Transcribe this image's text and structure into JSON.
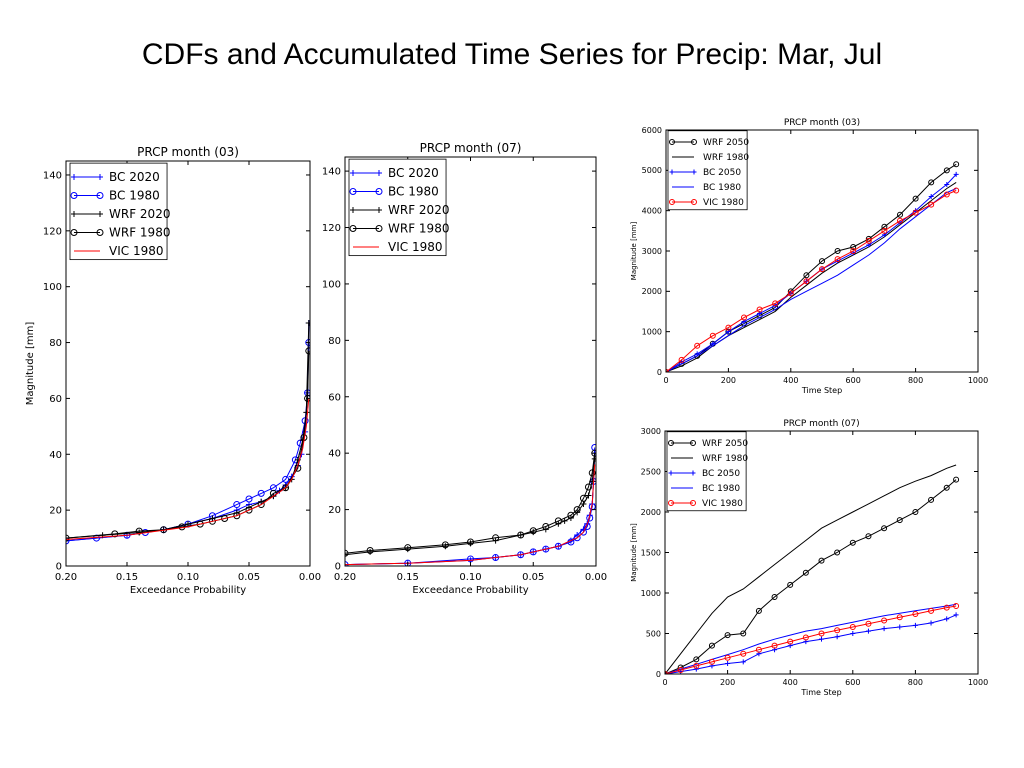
{
  "slide": {
    "title": "CDFs and Accumulated Time Series for Precip:  Mar, Jul"
  },
  "colors": {
    "bc_future": "#0000ff",
    "bc_1980": "#0000ff",
    "wrf": "#000000",
    "vic": "#ff0000"
  },
  "chart_data": [
    {
      "id": "cdf_mar",
      "type": "line",
      "title": "PRCP month (03)",
      "xlabel": "Exceedance Probability",
      "ylabel": "Magnitude [mm]",
      "xlim": [
        0.2,
        0.0
      ],
      "ylim": [
        0,
        145
      ],
      "xticks": [
        0.2,
        0.15,
        0.1,
        0.05,
        0.0
      ],
      "xticklabels": [
        "0.20",
        "0.15",
        "0.10",
        "0.05",
        "0.00"
      ],
      "yticks": [
        0,
        20,
        40,
        60,
        80,
        100,
        120,
        140
      ],
      "grid": false,
      "legend": "top-left",
      "series": [
        {
          "name": "BC 2020",
          "color": "#0000ff",
          "marker": "plus",
          "x": [
            0.2,
            0.15,
            0.12,
            0.1,
            0.08,
            0.06,
            0.05,
            0.04,
            0.03,
            0.025,
            0.02,
            0.015,
            0.01,
            0.007,
            0.004,
            0.002,
            0.001
          ],
          "y": [
            9,
            11,
            13,
            15,
            17,
            20,
            22,
            23,
            25,
            27,
            29,
            32,
            36,
            40,
            48,
            62,
            87
          ]
        },
        {
          "name": "BC 1980",
          "color": "#0000ff",
          "marker": "circle",
          "x": [
            0.2,
            0.175,
            0.15,
            0.135,
            0.12,
            0.1,
            0.08,
            0.06,
            0.05,
            0.04,
            0.03,
            0.02,
            0.012,
            0.008,
            0.004,
            0.002,
            0.001
          ],
          "y": [
            9,
            10,
            11,
            12,
            13,
            15,
            18,
            22,
            24,
            26,
            28,
            31,
            38,
            44,
            52,
            62,
            80
          ]
        },
        {
          "name": "WRF 2020",
          "color": "#000000",
          "marker": "plus",
          "x": [
            0.2,
            0.17,
            0.14,
            0.12,
            0.1,
            0.08,
            0.06,
            0.05,
            0.04,
            0.03,
            0.02,
            0.015,
            0.01,
            0.006,
            0.003,
            0.001
          ],
          "y": [
            10,
            11,
            12,
            13,
            15,
            17,
            19,
            21,
            23,
            25,
            28,
            31,
            38,
            45,
            55,
            87
          ]
        },
        {
          "name": "WRF 1980",
          "color": "#000000",
          "marker": "circle",
          "x": [
            0.2,
            0.16,
            0.14,
            0.12,
            0.105,
            0.09,
            0.08,
            0.07,
            0.06,
            0.05,
            0.04,
            0.03,
            0.02,
            0.01,
            0.005,
            0.002,
            0.001
          ],
          "y": [
            10,
            11.5,
            12.5,
            13,
            14,
            15,
            16,
            17,
            18,
            20,
            22,
            26,
            28,
            35,
            46,
            60,
            77
          ]
        },
        {
          "name": "VIC 1980",
          "color": "#ff0000",
          "marker": "none",
          "x": [
            0.2,
            0.15,
            0.1,
            0.08,
            0.06,
            0.04,
            0.03,
            0.02,
            0.015,
            0.01,
            0.006,
            0.003,
            0.001
          ],
          "y": [
            9.5,
            11,
            14,
            16,
            18,
            22,
            25,
            28,
            31,
            36,
            42,
            50,
            60
          ]
        }
      ]
    },
    {
      "id": "cdf_jul",
      "type": "line",
      "title": "PRCP month (07)",
      "xlabel": "Exceedance Probability",
      "ylabel": "",
      "xlim": [
        0.2,
        0.0
      ],
      "ylim": [
        0,
        145
      ],
      "xticks": [
        0.2,
        0.15,
        0.1,
        0.05,
        0.0
      ],
      "xticklabels": [
        "0.20",
        "0.15",
        "0.10",
        "0.05",
        "0.00"
      ],
      "yticks": [
        0,
        20,
        40,
        60,
        80,
        100,
        120,
        140
      ],
      "grid": false,
      "legend": "top-left",
      "series": [
        {
          "name": "BC 2020",
          "color": "#0000ff",
          "marker": "plus",
          "x": [
            0.2,
            0.15,
            0.1,
            0.08,
            0.06,
            0.05,
            0.04,
            0.03,
            0.02,
            0.015,
            0.01,
            0.007,
            0.005,
            0.003,
            0.002,
            0.001
          ],
          "y": [
            0.5,
            1,
            2,
            3,
            4,
            5,
            6,
            7,
            9,
            11,
            13,
            15,
            18,
            22,
            30,
            40
          ]
        },
        {
          "name": "BC 1980",
          "color": "#0000ff",
          "marker": "circle",
          "x": [
            0.2,
            0.15,
            0.1,
            0.08,
            0.06,
            0.05,
            0.04,
            0.03,
            0.02,
            0.015,
            0.01,
            0.007,
            0.005,
            0.003,
            0.002,
            0.001
          ],
          "y": [
            0.5,
            1,
            2.5,
            3,
            4,
            5,
            6,
            7,
            8.5,
            10,
            12,
            14,
            17,
            21,
            30,
            42
          ]
        },
        {
          "name": "WRF 2020",
          "color": "#000000",
          "marker": "plus",
          "x": [
            0.2,
            0.18,
            0.15,
            0.12,
            0.1,
            0.08,
            0.06,
            0.05,
            0.04,
            0.03,
            0.025,
            0.02,
            0.015,
            0.01,
            0.006,
            0.003,
            0.001
          ],
          "y": [
            4,
            5,
            6,
            7,
            8,
            9,
            11,
            12,
            13,
            15,
            16,
            17,
            19,
            22,
            25,
            30,
            38
          ]
        },
        {
          "name": "WRF 1980",
          "color": "#000000",
          "marker": "circle",
          "x": [
            0.2,
            0.18,
            0.15,
            0.12,
            0.1,
            0.08,
            0.06,
            0.05,
            0.04,
            0.03,
            0.02,
            0.015,
            0.01,
            0.006,
            0.003,
            0.001
          ],
          "y": [
            4.5,
            5.5,
            6.5,
            7.5,
            8.5,
            10,
            11,
            12.5,
            14,
            16,
            18,
            20,
            24,
            28,
            33,
            40
          ]
        },
        {
          "name": "VIC 1980",
          "color": "#ff0000",
          "marker": "none",
          "x": [
            0.2,
            0.15,
            0.1,
            0.08,
            0.06,
            0.04,
            0.03,
            0.02,
            0.015,
            0.01,
            0.006,
            0.003,
            0.001
          ],
          "y": [
            0.5,
            1,
            2,
            3,
            4,
            6,
            7,
            9,
            10,
            12,
            16,
            22,
            36
          ]
        }
      ]
    },
    {
      "id": "ts_mar",
      "type": "line",
      "title": "PRCP month (03)",
      "xlabel": "Time Step",
      "ylabel": "Magnitude [mm]",
      "xlim": [
        0,
        1000
      ],
      "ylim": [
        0,
        6000
      ],
      "xticks": [
        0,
        200,
        400,
        600,
        800,
        1000
      ],
      "xticklabels": [
        "0",
        "200",
        "400",
        "600",
        "800",
        "1000"
      ],
      "yticks": [
        0,
        1000,
        2000,
        3000,
        4000,
        5000,
        6000
      ],
      "grid": false,
      "legend": "top-left",
      "series": [
        {
          "name": "WRF 2050",
          "color": "#000000",
          "marker": "circle",
          "x": [
            0,
            50,
            100,
            150,
            200,
            250,
            300,
            350,
            400,
            450,
            500,
            550,
            600,
            650,
            700,
            750,
            800,
            850,
            900,
            930
          ],
          "y": [
            0,
            200,
            400,
            700,
            1000,
            1200,
            1400,
            1600,
            2000,
            2400,
            2750,
            3000,
            3100,
            3300,
            3600,
            3900,
            4300,
            4700,
            5000,
            5150
          ]
        },
        {
          "name": "WRF 1980",
          "color": "#000000",
          "marker": "none",
          "x": [
            0,
            50,
            100,
            150,
            200,
            250,
            300,
            350,
            400,
            450,
            500,
            550,
            600,
            650,
            700,
            750,
            800,
            850,
            900,
            930
          ],
          "y": [
            0,
            150,
            350,
            650,
            900,
            1100,
            1300,
            1500,
            1850,
            2150,
            2450,
            2700,
            2900,
            3100,
            3350,
            3650,
            3950,
            4250,
            4550,
            4700
          ]
        },
        {
          "name": "BC 2050",
          "color": "#0000ff",
          "marker": "plus",
          "x": [
            0,
            50,
            100,
            150,
            200,
            250,
            300,
            350,
            400,
            450,
            500,
            550,
            600,
            650,
            700,
            750,
            800,
            850,
            900,
            930
          ],
          "y": [
            0,
            250,
            450,
            700,
            1000,
            1250,
            1450,
            1650,
            1950,
            2250,
            2550,
            2750,
            2950,
            3150,
            3400,
            3700,
            4000,
            4350,
            4650,
            4900
          ]
        },
        {
          "name": "BC 1980",
          "color": "#0000ff",
          "marker": "none",
          "x": [
            0,
            50,
            100,
            150,
            200,
            250,
            300,
            350,
            400,
            450,
            500,
            550,
            600,
            650,
            700,
            750,
            800,
            850,
            900,
            930
          ],
          "y": [
            0,
            200,
            400,
            650,
            900,
            1150,
            1350,
            1550,
            1800,
            2000,
            2200,
            2400,
            2650,
            2900,
            3200,
            3550,
            3850,
            4150,
            4450,
            4550
          ]
        },
        {
          "name": "VIC 1980",
          "color": "#ff0000",
          "marker": "circle",
          "x": [
            0,
            50,
            100,
            150,
            200,
            250,
            300,
            350,
            400,
            450,
            500,
            550,
            600,
            650,
            700,
            750,
            800,
            850,
            900,
            930
          ],
          "y": [
            0,
            300,
            650,
            900,
            1100,
            1350,
            1550,
            1700,
            1950,
            2250,
            2550,
            2800,
            3000,
            3250,
            3500,
            3750,
            3950,
            4150,
            4400,
            4500
          ]
        }
      ]
    },
    {
      "id": "ts_jul",
      "type": "line",
      "title": "PRCP month (07)",
      "xlabel": "Time Step",
      "ylabel": "Magnitude [mm]",
      "xlim": [
        0,
        1000
      ],
      "ylim": [
        0,
        3000
      ],
      "xticks": [
        0,
        200,
        400,
        600,
        800,
        1000
      ],
      "xticklabels": [
        "0",
        "200",
        "400",
        "600",
        "800",
        "1000"
      ],
      "yticks": [
        0,
        500,
        1000,
        1500,
        2000,
        2500,
        3000
      ],
      "grid": false,
      "legend": "top-left",
      "series": [
        {
          "name": "WRF 2050",
          "color": "#000000",
          "marker": "circle",
          "x": [
            0,
            50,
            100,
            150,
            200,
            250,
            300,
            350,
            400,
            450,
            500,
            550,
            600,
            650,
            700,
            750,
            800,
            850,
            900,
            930
          ],
          "y": [
            0,
            80,
            180,
            350,
            480,
            500,
            780,
            950,
            1100,
            1250,
            1400,
            1500,
            1620,
            1700,
            1800,
            1900,
            2000,
            2150,
            2300,
            2400
          ]
        },
        {
          "name": "WRF 1980",
          "color": "#000000",
          "marker": "none",
          "x": [
            0,
            50,
            100,
            150,
            200,
            250,
            300,
            350,
            400,
            450,
            500,
            550,
            600,
            650,
            700,
            750,
            800,
            850,
            900,
            930
          ],
          "y": [
            0,
            250,
            500,
            750,
            950,
            1050,
            1200,
            1350,
            1500,
            1650,
            1800,
            1900,
            2000,
            2100,
            2200,
            2300,
            2380,
            2450,
            2540,
            2580
          ]
        },
        {
          "name": "BC 2050",
          "color": "#0000ff",
          "marker": "plus",
          "x": [
            0,
            50,
            100,
            150,
            200,
            250,
            300,
            350,
            400,
            450,
            500,
            550,
            600,
            650,
            700,
            750,
            800,
            850,
            900,
            930
          ],
          "y": [
            0,
            30,
            60,
            100,
            130,
            150,
            250,
            300,
            350,
            400,
            430,
            460,
            500,
            530,
            560,
            580,
            600,
            630,
            680,
            730
          ]
        },
        {
          "name": "BC 1980",
          "color": "#0000ff",
          "marker": "none",
          "x": [
            0,
            50,
            100,
            150,
            200,
            250,
            300,
            350,
            400,
            450,
            500,
            550,
            600,
            650,
            700,
            750,
            800,
            850,
            900,
            930
          ],
          "y": [
            0,
            60,
            120,
            180,
            240,
            300,
            370,
            430,
            480,
            530,
            560,
            600,
            640,
            680,
            720,
            750,
            780,
            810,
            840,
            860
          ]
        },
        {
          "name": "VIC 1980",
          "color": "#ff0000",
          "marker": "circle",
          "x": [
            0,
            50,
            100,
            150,
            200,
            250,
            300,
            350,
            400,
            450,
            500,
            550,
            600,
            650,
            700,
            750,
            800,
            850,
            900,
            930
          ],
          "y": [
            0,
            50,
            100,
            150,
            200,
            250,
            300,
            350,
            400,
            450,
            500,
            540,
            580,
            620,
            660,
            700,
            740,
            780,
            820,
            840
          ]
        }
      ]
    }
  ]
}
